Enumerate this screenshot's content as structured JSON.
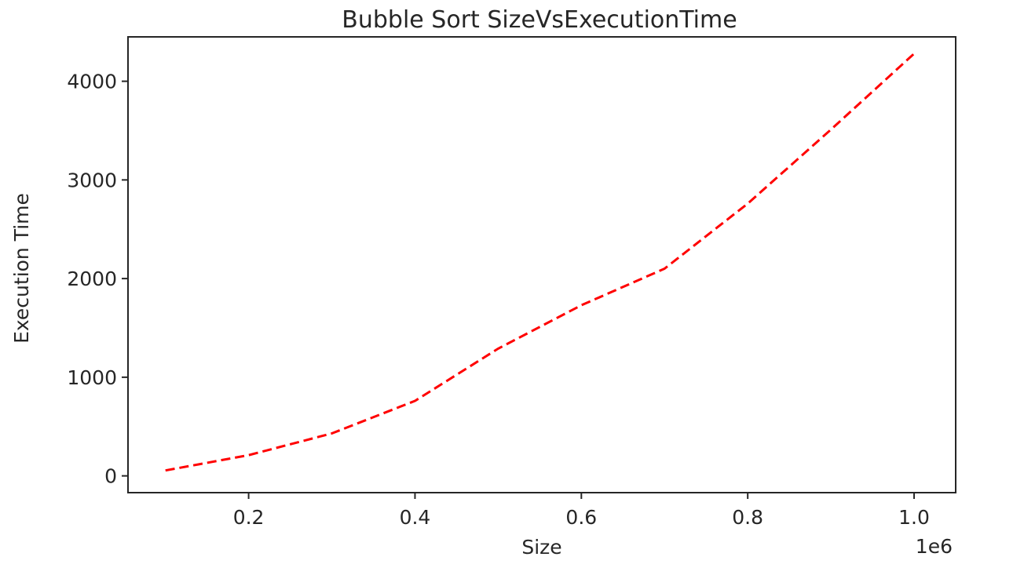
{
  "chart_data": {
    "type": "line",
    "title": "Bubble Sort SizeVsExecutionTime",
    "xlabel": "Size",
    "ylabel": "Execution Time",
    "x_offset_label": "1e6",
    "xlim": [
      0.055,
      1.05
    ],
    "ylim": [
      -170,
      4450
    ],
    "x_ticks": [
      0.2,
      0.4,
      0.6,
      0.8,
      1.0
    ],
    "x_tick_labels": [
      "0.2",
      "0.4",
      "0.6",
      "0.8",
      "1.0"
    ],
    "y_ticks": [
      0,
      1000,
      2000,
      3000,
      4000
    ],
    "y_tick_labels": [
      "0",
      "1000",
      "2000",
      "3000",
      "4000"
    ],
    "grid": false,
    "legend": "none",
    "series": [
      {
        "line_style": "dashed",
        "color": "#ff0000",
        "x": [
          0.1,
          0.2,
          0.3,
          0.4,
          0.5,
          0.6,
          0.7,
          0.8,
          0.9,
          1.0
        ],
        "y": [
          55,
          210,
          430,
          760,
          1290,
          1730,
          2100,
          2760,
          3510,
          4280
        ]
      }
    ]
  }
}
